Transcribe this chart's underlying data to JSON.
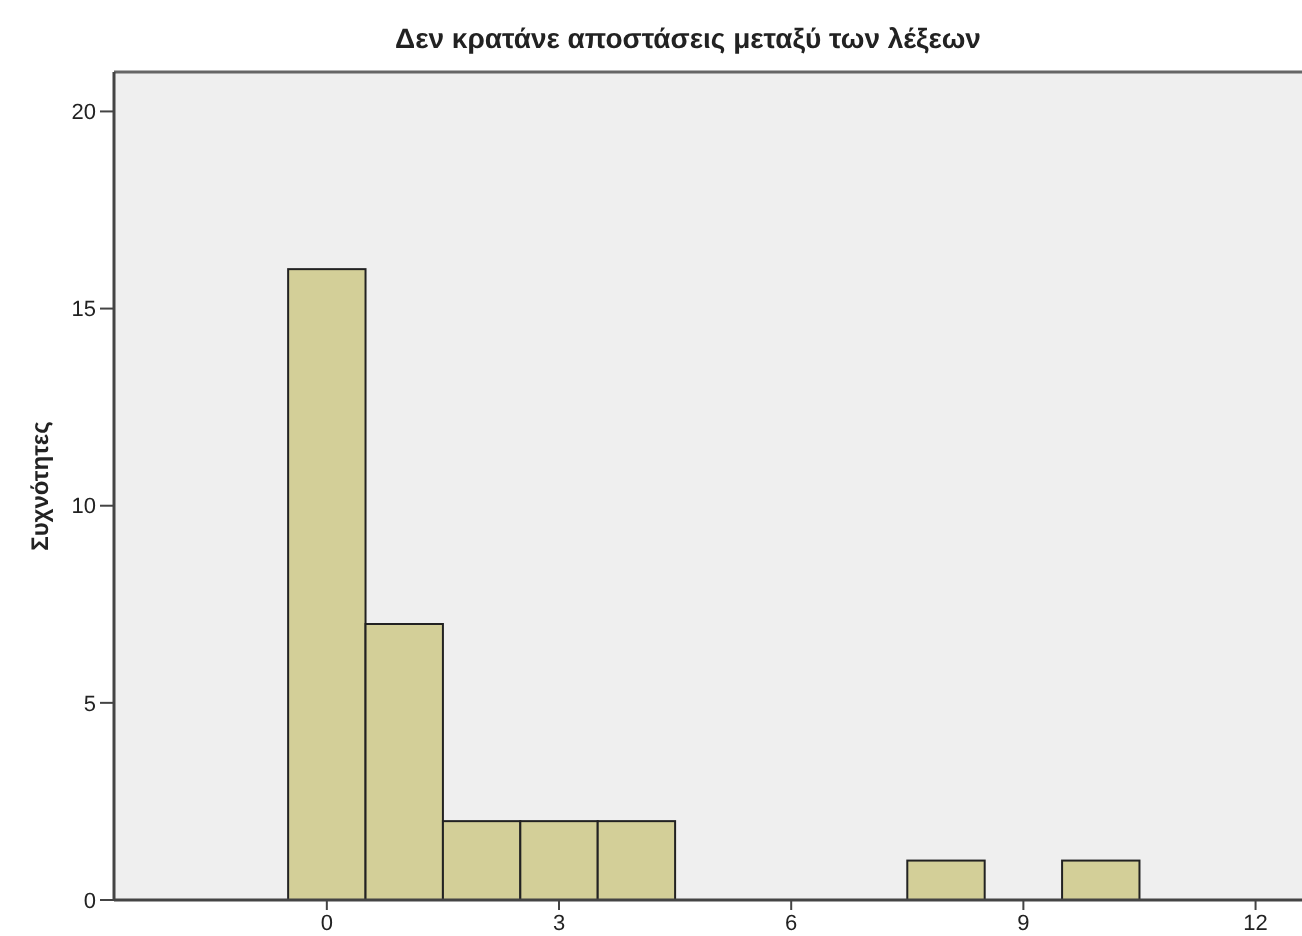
{
  "chart_data": {
    "type": "histogram",
    "title": "Δεν κρατάνε αποστάσεις μεταξύ των λέξεων",
    "ylabel": "Συχνότητες",
    "bins": [
      -0.5,
      0.5,
      1.5,
      2.5,
      3.5,
      4.5,
      5.5,
      6.5,
      7.5,
      8.5,
      9.5,
      10.5
    ],
    "values": [
      16,
      7,
      2,
      2,
      2,
      0,
      0,
      0,
      1,
      0,
      1
    ],
    "color": "#d3cf98",
    "xlim": [
      -2.75,
      12.6
    ],
    "xticks": [
      0,
      3,
      6,
      9,
      12
    ],
    "ylim": [
      0,
      21
    ],
    "yticks": [
      0,
      5,
      10,
      15,
      20
    ],
    "grid": false
  }
}
